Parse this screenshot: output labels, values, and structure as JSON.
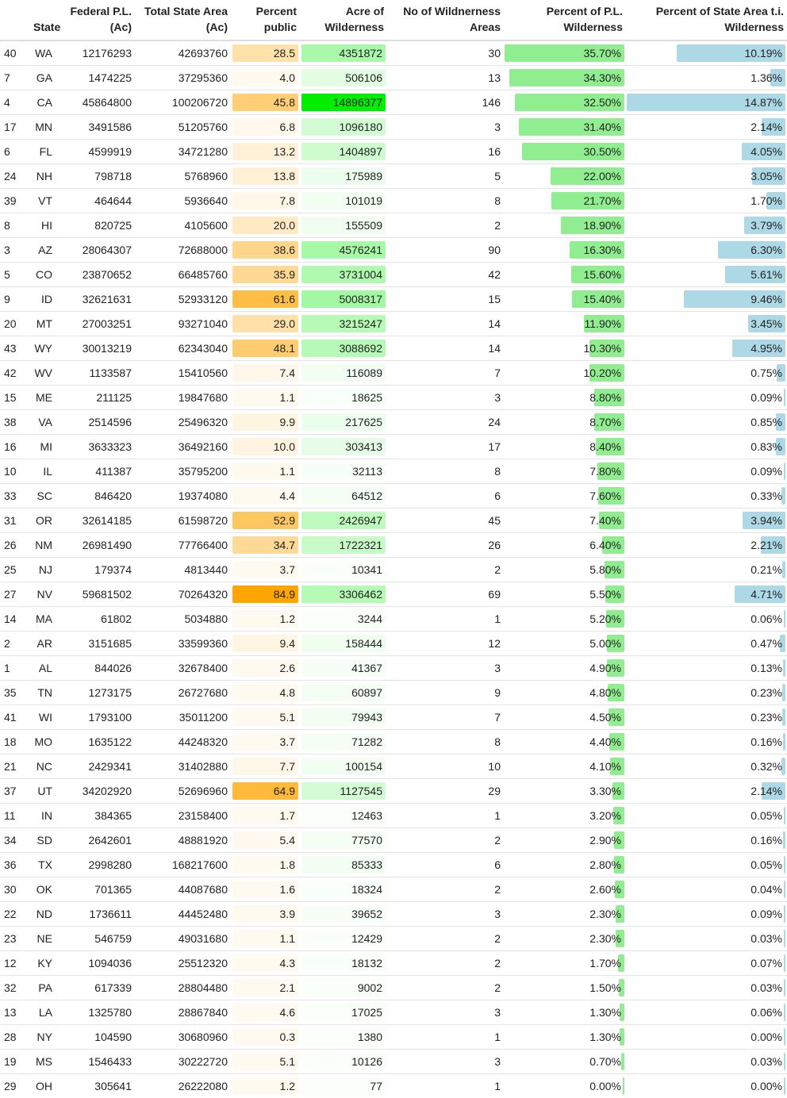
{
  "colors": {
    "percent_public_max": "#ffa500",
    "wilderness_acres_max": "#00ee00",
    "pl_wilderness_bar": "#90ee90",
    "state_area_bar": "#add8e6"
  },
  "scale_max": {
    "percent_public": 84.9,
    "wilderness_acres": 14896377,
    "pl_wilderness_pct": 35.7,
    "state_area_pct": 14.87
  },
  "headers": {
    "index": "",
    "state": "State",
    "federal": "Federal P.L. (Ac)",
    "total": "Total State Area (Ac)",
    "pct_public": "Percent public",
    "acre_wild": "Acre of Wilderness",
    "num_areas": "No of Wildnerness Areas",
    "pct_pl_wild": "Percent of P.L. Wilderness",
    "pct_state_wild": "Percent of State Area t.i. Wilderness"
  },
  "rows": [
    {
      "idx": "40",
      "state": "WA",
      "federal": "12176293",
      "total": "42693760",
      "pct_public": "28.5",
      "acre_wild": "4351872",
      "areas": "30",
      "pct_pl": "35.70%",
      "pct_state": "10.19%"
    },
    {
      "idx": "7",
      "state": "GA",
      "federal": "1474225",
      "total": "37295360",
      "pct_public": "4.0",
      "acre_wild": "506106",
      "areas": "13",
      "pct_pl": "34.30%",
      "pct_state": "1.36%"
    },
    {
      "idx": "4",
      "state": "CA",
      "federal": "45864800",
      "total": "100206720",
      "pct_public": "45.8",
      "acre_wild": "14896377",
      "areas": "146",
      "pct_pl": "32.50%",
      "pct_state": "14.87%"
    },
    {
      "idx": "17",
      "state": "MN",
      "federal": "3491586",
      "total": "51205760",
      "pct_public": "6.8",
      "acre_wild": "1096180",
      "areas": "3",
      "pct_pl": "31.40%",
      "pct_state": "2.14%"
    },
    {
      "idx": "6",
      "state": "FL",
      "federal": "4599919",
      "total": "34721280",
      "pct_public": "13.2",
      "acre_wild": "1404897",
      "areas": "16",
      "pct_pl": "30.50%",
      "pct_state": "4.05%"
    },
    {
      "idx": "24",
      "state": "NH",
      "federal": "798718",
      "total": "5768960",
      "pct_public": "13.8",
      "acre_wild": "175989",
      "areas": "5",
      "pct_pl": "22.00%",
      "pct_state": "3.05%"
    },
    {
      "idx": "39",
      "state": "VT",
      "federal": "464644",
      "total": "5936640",
      "pct_public": "7.8",
      "acre_wild": "101019",
      "areas": "8",
      "pct_pl": "21.70%",
      "pct_state": "1.70%"
    },
    {
      "idx": "8",
      "state": "HI",
      "federal": "820725",
      "total": "4105600",
      "pct_public": "20.0",
      "acre_wild": "155509",
      "areas": "2",
      "pct_pl": "18.90%",
      "pct_state": "3.79%"
    },
    {
      "idx": "3",
      "state": "AZ",
      "federal": "28064307",
      "total": "72688000",
      "pct_public": "38.6",
      "acre_wild": "4576241",
      "areas": "90",
      "pct_pl": "16.30%",
      "pct_state": "6.30%"
    },
    {
      "idx": "5",
      "state": "CO",
      "federal": "23870652",
      "total": "66485760",
      "pct_public": "35.9",
      "acre_wild": "3731004",
      "areas": "42",
      "pct_pl": "15.60%",
      "pct_state": "5.61%"
    },
    {
      "idx": "9",
      "state": "ID",
      "federal": "32621631",
      "total": "52933120",
      "pct_public": "61.6",
      "acre_wild": "5008317",
      "areas": "15",
      "pct_pl": "15.40%",
      "pct_state": "9.46%"
    },
    {
      "idx": "20",
      "state": "MT",
      "federal": "27003251",
      "total": "93271040",
      "pct_public": "29.0",
      "acre_wild": "3215247",
      "areas": "14",
      "pct_pl": "11.90%",
      "pct_state": "3.45%"
    },
    {
      "idx": "43",
      "state": "WY",
      "federal": "30013219",
      "total": "62343040",
      "pct_public": "48.1",
      "acre_wild": "3088692",
      "areas": "14",
      "pct_pl": "10.30%",
      "pct_state": "4.95%"
    },
    {
      "idx": "42",
      "state": "WV",
      "federal": "1133587",
      "total": "15410560",
      "pct_public": "7.4",
      "acre_wild": "116089",
      "areas": "7",
      "pct_pl": "10.20%",
      "pct_state": "0.75%"
    },
    {
      "idx": "15",
      "state": "ME",
      "federal": "211125",
      "total": "19847680",
      "pct_public": "1.1",
      "acre_wild": "18625",
      "areas": "3",
      "pct_pl": "8.80%",
      "pct_state": "0.09%"
    },
    {
      "idx": "38",
      "state": "VA",
      "federal": "2514596",
      "total": "25496320",
      "pct_public": "9.9",
      "acre_wild": "217625",
      "areas": "24",
      "pct_pl": "8.70%",
      "pct_state": "0.85%"
    },
    {
      "idx": "16",
      "state": "MI",
      "federal": "3633323",
      "total": "36492160",
      "pct_public": "10.0",
      "acre_wild": "303413",
      "areas": "17",
      "pct_pl": "8.40%",
      "pct_state": "0.83%"
    },
    {
      "idx": "10",
      "state": "IL",
      "federal": "411387",
      "total": "35795200",
      "pct_public": "1.1",
      "acre_wild": "32113",
      "areas": "8",
      "pct_pl": "7.80%",
      "pct_state": "0.09%"
    },
    {
      "idx": "33",
      "state": "SC",
      "federal": "846420",
      "total": "19374080",
      "pct_public": "4.4",
      "acre_wild": "64512",
      "areas": "6",
      "pct_pl": "7.60%",
      "pct_state": "0.33%"
    },
    {
      "idx": "31",
      "state": "OR",
      "federal": "32614185",
      "total": "61598720",
      "pct_public": "52.9",
      "acre_wild": "2426947",
      "areas": "45",
      "pct_pl": "7.40%",
      "pct_state": "3.94%"
    },
    {
      "idx": "26",
      "state": "NM",
      "federal": "26981490",
      "total": "77766400",
      "pct_public": "34.7",
      "acre_wild": "1722321",
      "areas": "26",
      "pct_pl": "6.40%",
      "pct_state": "2.21%"
    },
    {
      "idx": "25",
      "state": "NJ",
      "federal": "179374",
      "total": "4813440",
      "pct_public": "3.7",
      "acre_wild": "10341",
      "areas": "2",
      "pct_pl": "5.80%",
      "pct_state": "0.21%"
    },
    {
      "idx": "27",
      "state": "NV",
      "federal": "59681502",
      "total": "70264320",
      "pct_public": "84.9",
      "acre_wild": "3306462",
      "areas": "69",
      "pct_pl": "5.50%",
      "pct_state": "4.71%"
    },
    {
      "idx": "14",
      "state": "MA",
      "federal": "61802",
      "total": "5034880",
      "pct_public": "1.2",
      "acre_wild": "3244",
      "areas": "1",
      "pct_pl": "5.20%",
      "pct_state": "0.06%"
    },
    {
      "idx": "2",
      "state": "AR",
      "federal": "3151685",
      "total": "33599360",
      "pct_public": "9.4",
      "acre_wild": "158444",
      "areas": "12",
      "pct_pl": "5.00%",
      "pct_state": "0.47%"
    },
    {
      "idx": "1",
      "state": "AL",
      "federal": "844026",
      "total": "32678400",
      "pct_public": "2.6",
      "acre_wild": "41367",
      "areas": "3",
      "pct_pl": "4.90%",
      "pct_state": "0.13%"
    },
    {
      "idx": "35",
      "state": "TN",
      "federal": "1273175",
      "total": "26727680",
      "pct_public": "4.8",
      "acre_wild": "60897",
      "areas": "9",
      "pct_pl": "4.80%",
      "pct_state": "0.23%"
    },
    {
      "idx": "41",
      "state": "WI",
      "federal": "1793100",
      "total": "35011200",
      "pct_public": "5.1",
      "acre_wild": "79943",
      "areas": "7",
      "pct_pl": "4.50%",
      "pct_state": "0.23%"
    },
    {
      "idx": "18",
      "state": "MO",
      "federal": "1635122",
      "total": "44248320",
      "pct_public": "3.7",
      "acre_wild": "71282",
      "areas": "8",
      "pct_pl": "4.40%",
      "pct_state": "0.16%"
    },
    {
      "idx": "21",
      "state": "NC",
      "federal": "2429341",
      "total": "31402880",
      "pct_public": "7.7",
      "acre_wild": "100154",
      "areas": "10",
      "pct_pl": "4.10%",
      "pct_state": "0.32%"
    },
    {
      "idx": "37",
      "state": "UT",
      "federal": "34202920",
      "total": "52696960",
      "pct_public": "64.9",
      "acre_wild": "1127545",
      "areas": "29",
      "pct_pl": "3.30%",
      "pct_state": "2.14%"
    },
    {
      "idx": "11",
      "state": "IN",
      "federal": "384365",
      "total": "23158400",
      "pct_public": "1.7",
      "acre_wild": "12463",
      "areas": "1",
      "pct_pl": "3.20%",
      "pct_state": "0.05%"
    },
    {
      "idx": "34",
      "state": "SD",
      "federal": "2642601",
      "total": "48881920",
      "pct_public": "5.4",
      "acre_wild": "77570",
      "areas": "2",
      "pct_pl": "2.90%",
      "pct_state": "0.16%"
    },
    {
      "idx": "36",
      "state": "TX",
      "federal": "2998280",
      "total": "168217600",
      "pct_public": "1.8",
      "acre_wild": "85333",
      "areas": "6",
      "pct_pl": "2.80%",
      "pct_state": "0.05%"
    },
    {
      "idx": "30",
      "state": "OK",
      "federal": "701365",
      "total": "44087680",
      "pct_public": "1.6",
      "acre_wild": "18324",
      "areas": "2",
      "pct_pl": "2.60%",
      "pct_state": "0.04%"
    },
    {
      "idx": "22",
      "state": "ND",
      "federal": "1736611",
      "total": "44452480",
      "pct_public": "3.9",
      "acre_wild": "39652",
      "areas": "3",
      "pct_pl": "2.30%",
      "pct_state": "0.09%"
    },
    {
      "idx": "23",
      "state": "NE",
      "federal": "546759",
      "total": "49031680",
      "pct_public": "1.1",
      "acre_wild": "12429",
      "areas": "2",
      "pct_pl": "2.30%",
      "pct_state": "0.03%"
    },
    {
      "idx": "12",
      "state": "KY",
      "federal": "1094036",
      "total": "25512320",
      "pct_public": "4.3",
      "acre_wild": "18132",
      "areas": "2",
      "pct_pl": "1.70%",
      "pct_state": "0.07%"
    },
    {
      "idx": "32",
      "state": "PA",
      "federal": "617339",
      "total": "28804480",
      "pct_public": "2.1",
      "acre_wild": "9002",
      "areas": "2",
      "pct_pl": "1.50%",
      "pct_state": "0.03%"
    },
    {
      "idx": "13",
      "state": "LA",
      "federal": "1325780",
      "total": "28867840",
      "pct_public": "4.6",
      "acre_wild": "17025",
      "areas": "3",
      "pct_pl": "1.30%",
      "pct_state": "0.06%"
    },
    {
      "idx": "28",
      "state": "NY",
      "federal": "104590",
      "total": "30680960",
      "pct_public": "0.3",
      "acre_wild": "1380",
      "areas": "1",
      "pct_pl": "1.30%",
      "pct_state": "0.00%"
    },
    {
      "idx": "19",
      "state": "MS",
      "federal": "1546433",
      "total": "30222720",
      "pct_public": "5.1",
      "acre_wild": "10126",
      "areas": "3",
      "pct_pl": "0.70%",
      "pct_state": "0.03%"
    },
    {
      "idx": "29",
      "state": "OH",
      "federal": "305641",
      "total": "26222080",
      "pct_public": "1.2",
      "acre_wild": "77",
      "areas": "1",
      "pct_pl": "0.00%",
      "pct_state": "0.00%"
    }
  ]
}
